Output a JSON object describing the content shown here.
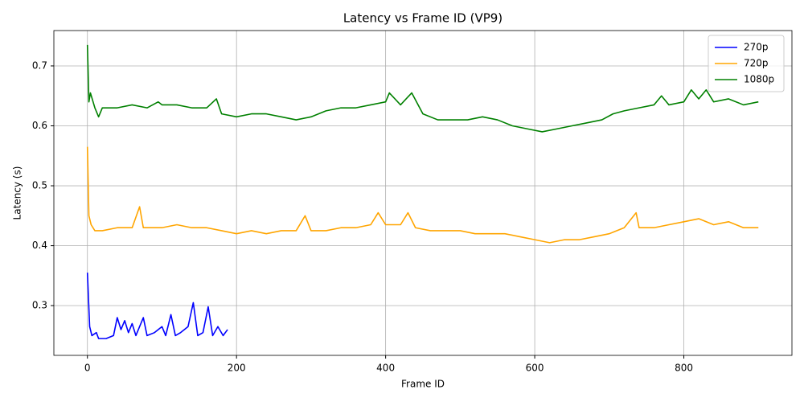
{
  "chart_data": {
    "type": "line",
    "title": "Latency vs Frame ID (VP9)",
    "x_label": "Frame ID",
    "y_label": "Latency (s)",
    "xlim": [
      -45,
      945
    ],
    "xticks": [
      0,
      200,
      400,
      600,
      800
    ],
    "ylim": [
      0.217,
      0.759
    ],
    "yticks": [
      0.3,
      0.4,
      0.5,
      0.6,
      0.7
    ],
    "grid": true,
    "legend": "upper right",
    "series": [
      {
        "name": "270p",
        "color": "#0000ff",
        "x": [
          0,
          3,
          6,
          12,
          15,
          25,
          35,
          40,
          45,
          50,
          55,
          60,
          65,
          70,
          75,
          80,
          90,
          100,
          105,
          112,
          118,
          125,
          135,
          142,
          148,
          155,
          162,
          168,
          175,
          182,
          188
        ],
        "values": [
          0.355,
          0.265,
          0.25,
          0.255,
          0.245,
          0.245,
          0.25,
          0.28,
          0.26,
          0.275,
          0.255,
          0.27,
          0.25,
          0.265,
          0.28,
          0.25,
          0.255,
          0.265,
          0.25,
          0.285,
          0.25,
          0.255,
          0.265,
          0.305,
          0.25,
          0.255,
          0.298,
          0.25,
          0.265,
          0.25,
          0.26
        ]
      },
      {
        "name": "720p",
        "color": "#ffa500",
        "x": [
          0,
          2,
          5,
          10,
          20,
          40,
          60,
          70,
          75,
          100,
          120,
          140,
          160,
          180,
          200,
          220,
          240,
          260,
          280,
          292,
          300,
          320,
          340,
          360,
          380,
          390,
          400,
          420,
          430,
          440,
          460,
          480,
          500,
          520,
          540,
          560,
          580,
          600,
          620,
          640,
          660,
          680,
          700,
          720,
          736,
          740,
          760,
          780,
          800,
          820,
          840,
          860,
          880,
          900
        ],
        "values": [
          0.565,
          0.45,
          0.435,
          0.425,
          0.425,
          0.43,
          0.43,
          0.465,
          0.43,
          0.43,
          0.435,
          0.43,
          0.43,
          0.425,
          0.42,
          0.425,
          0.42,
          0.425,
          0.425,
          0.45,
          0.425,
          0.425,
          0.43,
          0.43,
          0.435,
          0.455,
          0.435,
          0.435,
          0.455,
          0.43,
          0.425,
          0.425,
          0.425,
          0.42,
          0.42,
          0.42,
          0.415,
          0.41,
          0.405,
          0.41,
          0.41,
          0.415,
          0.42,
          0.43,
          0.455,
          0.43,
          0.43,
          0.435,
          0.44,
          0.445,
          0.435,
          0.44,
          0.43,
          0.43
        ]
      },
      {
        "name": "1080p",
        "color": "#008000",
        "x": [
          0,
          2,
          4,
          10,
          15,
          20,
          40,
          60,
          80,
          95,
          100,
          120,
          140,
          160,
          173,
          180,
          200,
          220,
          240,
          260,
          280,
          300,
          320,
          340,
          360,
          380,
          400,
          405,
          420,
          435,
          450,
          470,
          490,
          510,
          530,
          550,
          570,
          590,
          610,
          630,
          650,
          670,
          690,
          705,
          720,
          740,
          760,
          770,
          780,
          800,
          810,
          820,
          830,
          840,
          860,
          880,
          900
        ],
        "values": [
          0.735,
          0.64,
          0.655,
          0.63,
          0.615,
          0.63,
          0.63,
          0.635,
          0.63,
          0.64,
          0.635,
          0.635,
          0.63,
          0.63,
          0.645,
          0.62,
          0.615,
          0.62,
          0.62,
          0.615,
          0.61,
          0.615,
          0.625,
          0.63,
          0.63,
          0.635,
          0.64,
          0.655,
          0.635,
          0.655,
          0.62,
          0.61,
          0.61,
          0.61,
          0.615,
          0.61,
          0.6,
          0.595,
          0.59,
          0.595,
          0.6,
          0.605,
          0.61,
          0.62,
          0.625,
          0.63,
          0.635,
          0.65,
          0.635,
          0.64,
          0.66,
          0.645,
          0.66,
          0.64,
          0.645,
          0.635,
          0.64
        ]
      }
    ]
  }
}
